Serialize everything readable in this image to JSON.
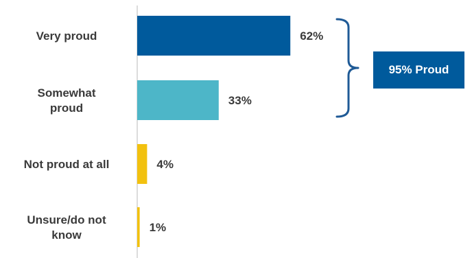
{
  "chart_data": {
    "type": "bar",
    "orientation": "horizontal",
    "categories": [
      "Very proud",
      "Somewhat proud",
      "Not proud at all",
      "Unsure/do not know"
    ],
    "category_lines": [
      [
        "Very proud"
      ],
      [
        "Somewhat",
        "proud"
      ],
      [
        "Not proud at all"
      ],
      [
        "Unsure/do not",
        "know"
      ]
    ],
    "values": [
      62,
      33,
      4,
      1
    ],
    "value_labels": [
      "62%",
      "33%",
      "4%",
      "1%"
    ],
    "unit": "%",
    "xlim": [
      0,
      100
    ],
    "colors": [
      "#005A9C",
      "#4DB6C8",
      "#F2C10F",
      "#F2C10F"
    ],
    "grid": false,
    "legend": "none",
    "annotation": {
      "text": "95% Proud",
      "groups": [
        "Very proud",
        "Somewhat proud"
      ],
      "bracket_color": "#1F5A96",
      "box_color": "#005A9C"
    }
  }
}
